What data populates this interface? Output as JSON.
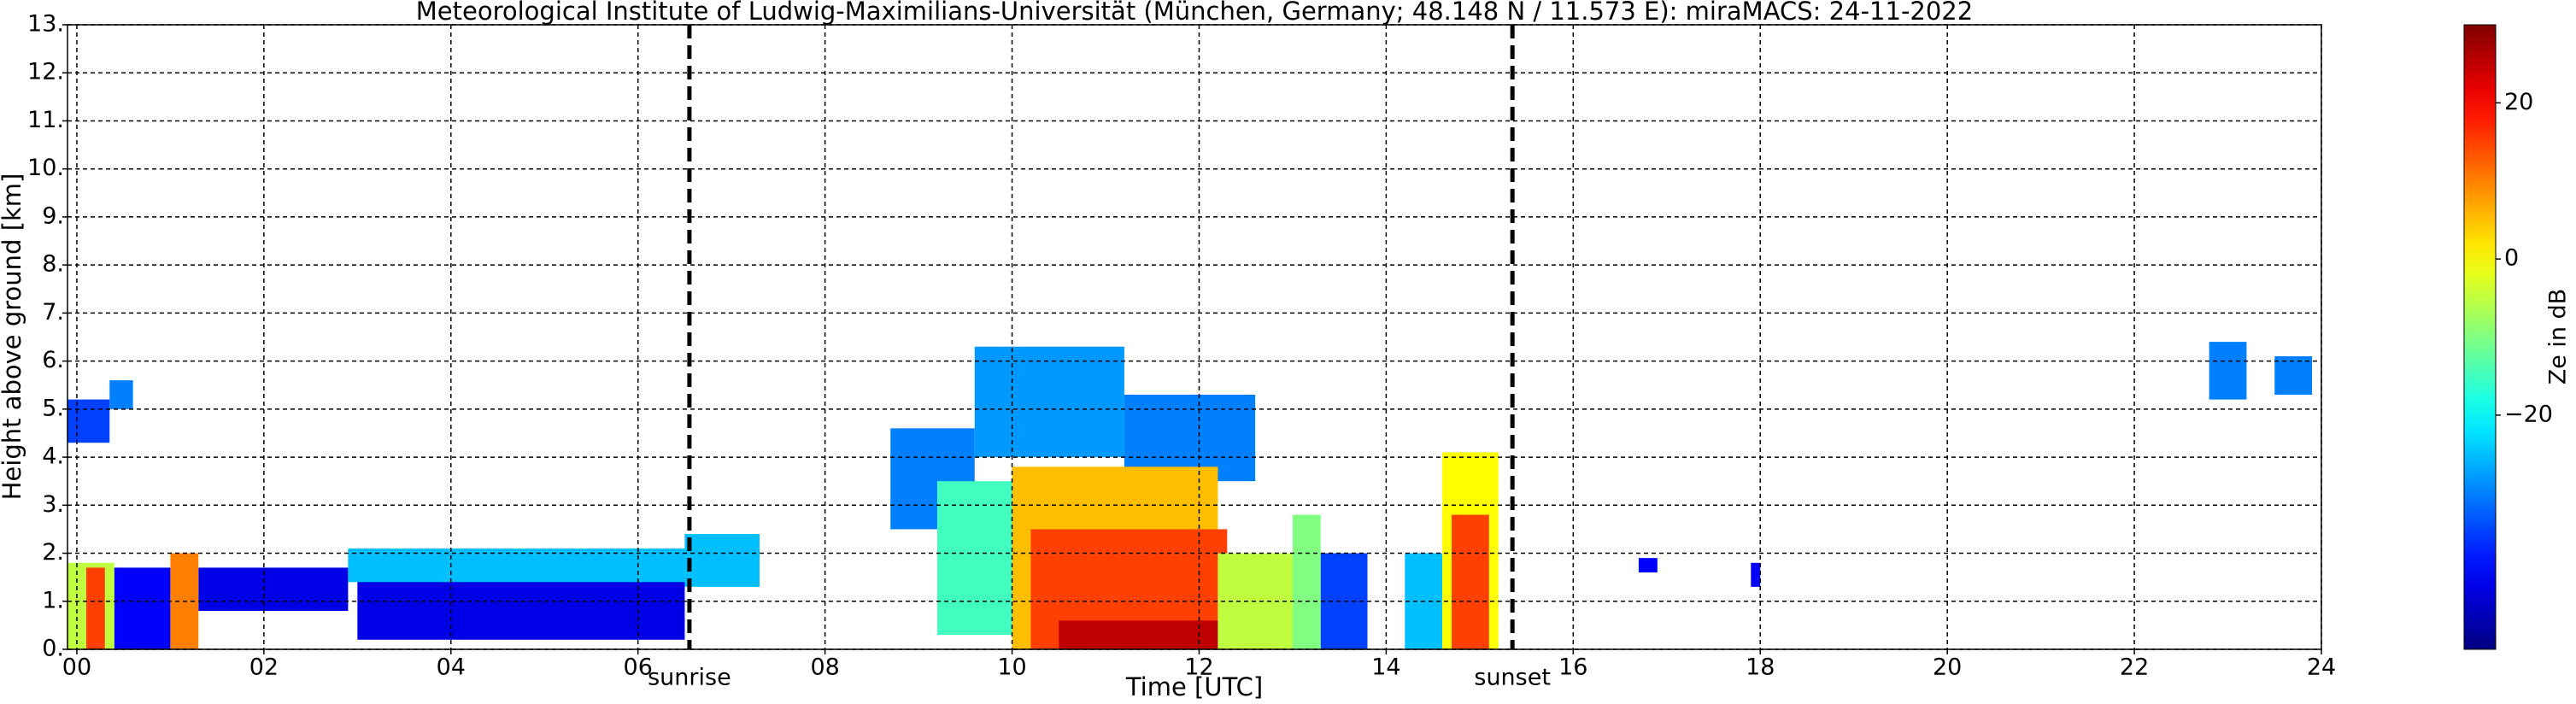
{
  "chart_data": {
    "type": "heatmap",
    "title": "Meteorological Institute of Ludwig-Maximilians-Universität (München, Germany; 48.148 N / 11.573 E):    miraMACS: 24-11-2022",
    "xlabel": "Time [UTC]",
    "ylabel": "Height above ground [km]",
    "colorbar_label": "Ze in dB",
    "colormap": "jet",
    "xlim": [
      -0.1,
      24
    ],
    "ylim": [
      0,
      13
    ],
    "clim": [
      -50,
      30
    ],
    "grid": true,
    "xticks": [
      {
        "value": 0,
        "label": "00"
      },
      {
        "value": 2,
        "label": "02"
      },
      {
        "value": 4,
        "label": "04"
      },
      {
        "value": 6,
        "label": "06"
      },
      {
        "value": 8,
        "label": "08"
      },
      10,
      12,
      14,
      16,
      18,
      20,
      22,
      24
    ],
    "yticks": [
      {
        "value": 0,
        "label": "0."
      },
      {
        "value": 1,
        "label": "1."
      },
      {
        "value": 2,
        "label": "2."
      },
      {
        "value": 3,
        "label": "3."
      },
      {
        "value": 4,
        "label": "4."
      },
      {
        "value": 5,
        "label": "5."
      },
      {
        "value": 6,
        "label": "6."
      },
      {
        "value": 7,
        "label": "7."
      },
      {
        "value": 8,
        "label": "8."
      },
      {
        "value": 9,
        "label": "9."
      },
      {
        "value": 10,
        "label": "10."
      },
      {
        "value": 11,
        "label": "11."
      },
      {
        "value": 12,
        "label": "12."
      },
      {
        "value": 13,
        "label": "13."
      }
    ],
    "cticks": [
      20,
      0,
      {
        "value": -20,
        "label": "−20"
      }
    ],
    "annotations": [
      {
        "text": "sunrise",
        "x": 6.55
      },
      {
        "text": "sunset",
        "x": 15.35
      }
    ],
    "cells": [
      {
        "start": -0.1,
        "end": 0.35,
        "base": 4.3,
        "top": 5.2,
        "ze": -35
      },
      {
        "start": 0.35,
        "end": 0.6,
        "base": 5.0,
        "top": 5.6,
        "ze": -30
      },
      {
        "start": 0.4,
        "end": 1.0,
        "base": 0,
        "top": 1.7,
        "ze": -40
      },
      {
        "start": 1.3,
        "end": 2.9,
        "base": 0.8,
        "top": 1.7,
        "ze": -42
      },
      {
        "start": 3.0,
        "end": 6.5,
        "base": 0.2,
        "top": 1.5,
        "ze": -42
      },
      {
        "start": 2.9,
        "end": 6.5,
        "base": 1.4,
        "top": 2.1,
        "ze": -25
      },
      {
        "start": 6.5,
        "end": 7.3,
        "base": 1.3,
        "top": 2.4,
        "ze": -25
      },
      {
        "start": -0.1,
        "end": 0.4,
        "base": 0,
        "top": 1.8,
        "ze": -5
      },
      {
        "start": 0.1,
        "end": 0.3,
        "base": 0,
        "top": 1.7,
        "ze": 15
      },
      {
        "start": 1.0,
        "end": 1.3,
        "base": 0,
        "top": 2.0,
        "ze": 10
      },
      {
        "start": 8.7,
        "end": 9.6,
        "base": 2.5,
        "top": 4.6,
        "ze": -30
      },
      {
        "start": 9.6,
        "end": 11.2,
        "base": 4.0,
        "top": 6.3,
        "ze": -28
      },
      {
        "start": 11.2,
        "end": 12.6,
        "base": 3.5,
        "top": 5.3,
        "ze": -30
      },
      {
        "start": 9.2,
        "end": 10.0,
        "base": 0.3,
        "top": 3.5,
        "ze": -15
      },
      {
        "start": 10.0,
        "end": 12.2,
        "base": 0,
        "top": 3.8,
        "ze": 5
      },
      {
        "start": 10.2,
        "end": 12.3,
        "base": 0,
        "top": 2.5,
        "ze": 15
      },
      {
        "start": 10.5,
        "end": 12.5,
        "base": 0,
        "top": 0.6,
        "ze": 25
      },
      {
        "start": 12.2,
        "end": 13.0,
        "base": 0,
        "top": 2.0,
        "ze": -5
      },
      {
        "start": 13.0,
        "end": 13.3,
        "base": 0,
        "top": 2.8,
        "ze": -10
      },
      {
        "start": 13.3,
        "end": 13.8,
        "base": 0,
        "top": 2.0,
        "ze": -35
      },
      {
        "start": 14.2,
        "end": 14.6,
        "base": 0,
        "top": 2.0,
        "ze": -25
      },
      {
        "start": 14.6,
        "end": 15.2,
        "base": 0,
        "top": 4.1,
        "ze": 0
      },
      {
        "start": 14.7,
        "end": 15.1,
        "base": 0,
        "top": 2.8,
        "ze": 15
      },
      {
        "start": 16.7,
        "end": 16.9,
        "base": 1.6,
        "top": 1.9,
        "ze": -40
      },
      {
        "start": 17.9,
        "end": 18.0,
        "base": 1.3,
        "top": 1.8,
        "ze": -40
      },
      {
        "start": 22.8,
        "end": 23.2,
        "base": 5.2,
        "top": 6.4,
        "ze": -30
      },
      {
        "start": 23.5,
        "end": 23.9,
        "base": 5.3,
        "top": 6.1,
        "ze": -30
      }
    ]
  }
}
